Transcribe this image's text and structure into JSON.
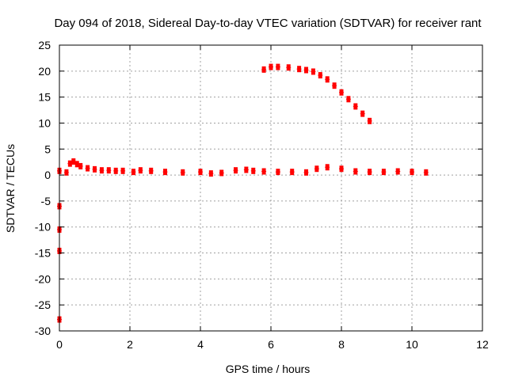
{
  "chart_data": {
    "type": "scatter",
    "title": "Day 094 of 2018, Sidereal Day-to-day VTEC variation (SDTVAR) for receiver rant",
    "xlabel": "GPS time / hours",
    "ylabel": "SDTVAR / TECUs",
    "xlim": [
      0,
      12
    ],
    "ylim": [
      -30,
      25
    ],
    "xticks": [
      0,
      2,
      4,
      6,
      8,
      10,
      12
    ],
    "yticks": [
      -30,
      -25,
      -20,
      -15,
      -10,
      -5,
      0,
      5,
      10,
      15,
      20,
      25
    ],
    "grid": true,
    "legend": "none",
    "color": "#ff0000",
    "series": [
      {
        "x": [
          0.2,
          0.3,
          0.4,
          0.5,
          0.6,
          0.8,
          1.0,
          1.2,
          1.4,
          1.6,
          1.8,
          2.1,
          2.3,
          2.6,
          3.0,
          3.5,
          4.0,
          4.3,
          4.6,
          5.0,
          5.3,
          5.5,
          5.8,
          6.2,
          6.6,
          7.0,
          7.3,
          7.6,
          8.0,
          8.4,
          8.8,
          9.2,
          9.6,
          10.0,
          10.4
        ],
        "y": [
          0.5,
          2.2,
          2.6,
          2.1,
          1.7,
          1.3,
          1.1,
          0.9,
          0.9,
          0.8,
          0.8,
          0.6,
          0.9,
          0.8,
          0.6,
          0.5,
          0.6,
          0.3,
          0.4,
          0.9,
          1.0,
          0.8,
          0.7,
          0.6,
          0.6,
          0.5,
          1.2,
          1.5,
          1.2,
          0.7,
          0.6,
          0.6,
          0.7,
          0.6,
          0.5
        ]
      },
      {
        "x": [
          5.8,
          6.0,
          6.2,
          6.5,
          6.8,
          7.0,
          7.2,
          7.4,
          7.6,
          7.8,
          8.0,
          8.2,
          8.4,
          8.6,
          8.8
        ],
        "y": [
          20.3,
          20.8,
          20.8,
          20.7,
          20.4,
          20.2,
          19.9,
          19.2,
          18.4,
          17.2,
          15.9,
          14.6,
          13.2,
          11.8,
          10.4
        ]
      },
      {
        "x": [
          0.0,
          0.0,
          0.0,
          0.0,
          0.0
        ],
        "y": [
          0.8,
          -6.0,
          -10.5,
          -14.6,
          -27.8
        ]
      }
    ]
  }
}
